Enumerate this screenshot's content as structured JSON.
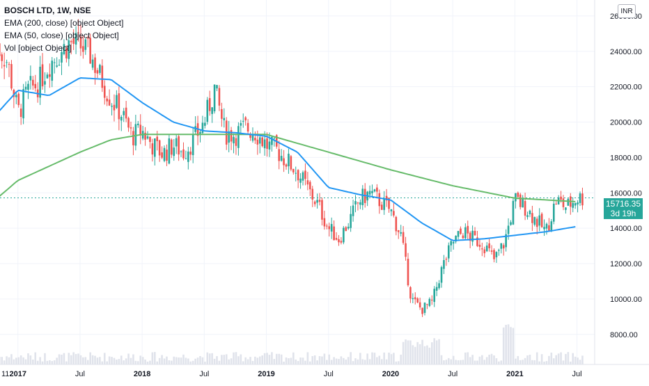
{
  "legend": {
    "title": "BOSCH LTD, 1W, NSE",
    "ema200": "EMA (200, close) [object Object]",
    "ema50": "EMA (50, close) [object Object]",
    "vol": "Vol [object Object]"
  },
  "currency_label": "INR",
  "last_price": {
    "value": "15716.35",
    "countdown": "3d 19h"
  },
  "colors": {
    "up": "#26a69a",
    "down": "#ef5350",
    "ema200": "#66bb6a",
    "ema50": "#2196f3",
    "grid": "#f0f3fa",
    "price_line": "#26a69a",
    "volume": "#e0e3eb"
  },
  "chart_data": {
    "type": "candlestick",
    "y_ticks": [
      "26000.00",
      "24000.00",
      "22000.00",
      "20000.00",
      "18000.00",
      "16000.00",
      "14000.00",
      "12000.00",
      "10000.00",
      "8000.00"
    ],
    "x_ticks": [
      "11",
      "2017",
      "Jul",
      "2018",
      "Jul",
      "2019",
      "Jul",
      "2020",
      "Jul",
      "2021",
      "Jul"
    ],
    "ylim": [
      6300,
      26900
    ],
    "close_path": [
      [
        "2016-11",
        24300
      ],
      [
        "2016-12",
        23400
      ],
      [
        "2017-01",
        20500
      ],
      [
        "2017-02",
        21800
      ],
      [
        "2017-03",
        22200
      ],
      [
        "2017-04",
        23300
      ],
      [
        "2017-05",
        23900
      ],
      [
        "2017-06",
        24500
      ],
      [
        "2017-07",
        24300
      ],
      [
        "2017-08",
        23800
      ],
      [
        "2017-09",
        22500
      ],
      [
        "2017-10",
        21300
      ],
      [
        "2017-11",
        20500
      ],
      [
        "2017-12",
        19200
      ],
      [
        "2018-01",
        19500
      ],
      [
        "2018-02",
        18700
      ],
      [
        "2018-03",
        18200
      ],
      [
        "2018-04",
        18700
      ],
      [
        "2018-05",
        18300
      ],
      [
        "2018-06",
        19000
      ],
      [
        "2018-07",
        20000
      ],
      [
        "2018-08",
        21900
      ],
      [
        "2018-09",
        19400
      ],
      [
        "2018-10",
        19300
      ],
      [
        "2018-11",
        19700
      ],
      [
        "2018-12",
        19400
      ],
      [
        "2019-01",
        18700
      ],
      [
        "2019-02",
        18400
      ],
      [
        "2019-03",
        17800
      ],
      [
        "2019-04",
        17200
      ],
      [
        "2019-05",
        16200
      ],
      [
        "2019-06",
        15300
      ],
      [
        "2019-07",
        14000
      ],
      [
        "2019-08",
        13400
      ],
      [
        "2019-09",
        14400
      ],
      [
        "2019-10",
        15600
      ],
      [
        "2019-11",
        16000
      ],
      [
        "2019-12",
        15500
      ],
      [
        "2020-01",
        15000
      ],
      [
        "2020-02",
        13600
      ],
      [
        "2020-03",
        10000
      ],
      [
        "2020-04",
        9400
      ],
      [
        "2020-05",
        9800
      ],
      [
        "2020-06",
        11800
      ],
      [
        "2020-07",
        13200
      ],
      [
        "2020-08",
        13800
      ],
      [
        "2020-09",
        13400
      ],
      [
        "2020-10",
        13100
      ],
      [
        "2020-11",
        12200
      ],
      [
        "2020-12",
        13200
      ],
      [
        "2021-01",
        15600
      ],
      [
        "2021-02",
        15200
      ],
      [
        "2021-03",
        14500
      ],
      [
        "2021-04",
        13800
      ],
      [
        "2021-05",
        15600
      ],
      [
        "2021-06",
        15200
      ],
      [
        "2021-07",
        15716
      ]
    ],
    "ema200": [
      [
        "2016-11",
        15700
      ],
      [
        "2017-01",
        16700
      ],
      [
        "2017-04",
        17500
      ],
      [
        "2017-07",
        18300
      ],
      [
        "2017-10",
        19000
      ],
      [
        "2018-01",
        19300
      ],
      [
        "2018-07",
        19300
      ],
      [
        "2019-01",
        19300
      ],
      [
        "2019-07",
        18300
      ],
      [
        "2020-01",
        17300
      ],
      [
        "2020-07",
        16400
      ],
      [
        "2021-01",
        15700
      ],
      [
        "2021-07",
        15500
      ]
    ],
    "ema50": [
      [
        "2016-11",
        20500
      ],
      [
        "2017-01",
        21800
      ],
      [
        "2017-04",
        21500
      ],
      [
        "2017-07",
        22500
      ],
      [
        "2017-10",
        22400
      ],
      [
        "2018-01",
        21100
      ],
      [
        "2018-04",
        20000
      ],
      [
        "2018-07",
        19500
      ],
      [
        "2018-10",
        19400
      ],
      [
        "2019-01",
        19200
      ],
      [
        "2019-04",
        18300
      ],
      [
        "2019-07",
        16300
      ],
      [
        "2019-10",
        15900
      ],
      [
        "2020-01",
        15600
      ],
      [
        "2020-04",
        14300
      ],
      [
        "2020-07",
        13300
      ],
      [
        "2020-10",
        13400
      ],
      [
        "2021-01",
        13600
      ],
      [
        "2021-04",
        13800
      ],
      [
        "2021-07",
        14100
      ]
    ]
  }
}
